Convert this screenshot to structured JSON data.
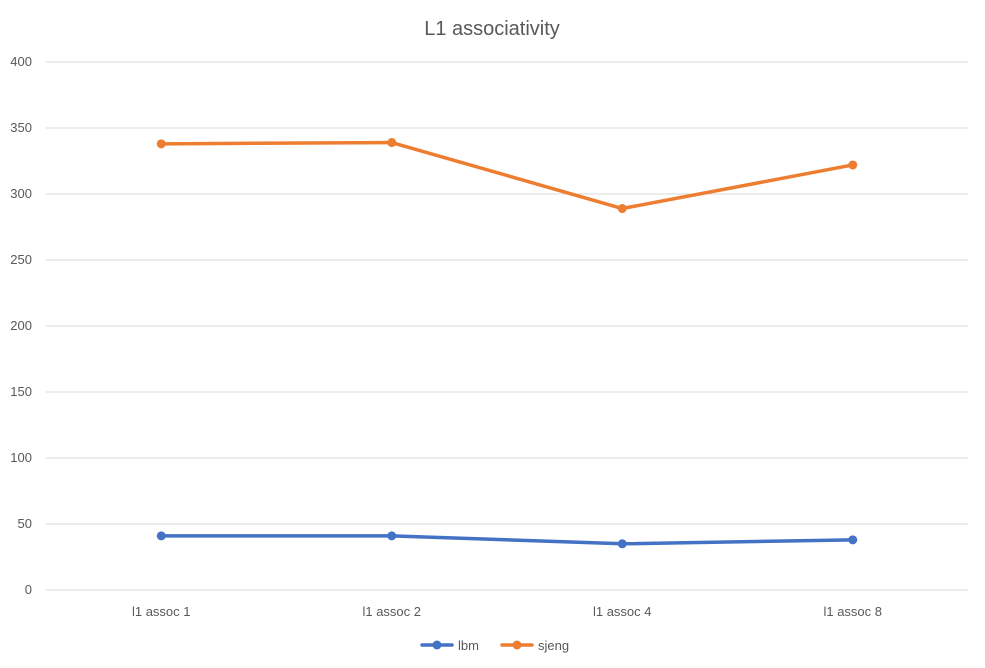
{
  "chart_data": {
    "type": "line",
    "title": "L1 associativity",
    "xlabel": "",
    "ylabel": "",
    "categories": [
      "l1 assoc 1",
      "l1 assoc 2",
      "l1 assoc 4",
      "l1 assoc 8"
    ],
    "series": [
      {
        "name": "lbm",
        "values": [
          41,
          41,
          35,
          38
        ],
        "color": "#4472C4"
      },
      {
        "name": "sjeng",
        "values": [
          338,
          339,
          289,
          322
        ],
        "color": "#ED7D31"
      }
    ],
    "ylim": [
      0,
      400
    ],
    "yticks": [
      "0",
      "50",
      "100",
      "150",
      "200",
      "250",
      "300",
      "350",
      "400"
    ],
    "grid": true,
    "legend_position": "bottom"
  }
}
